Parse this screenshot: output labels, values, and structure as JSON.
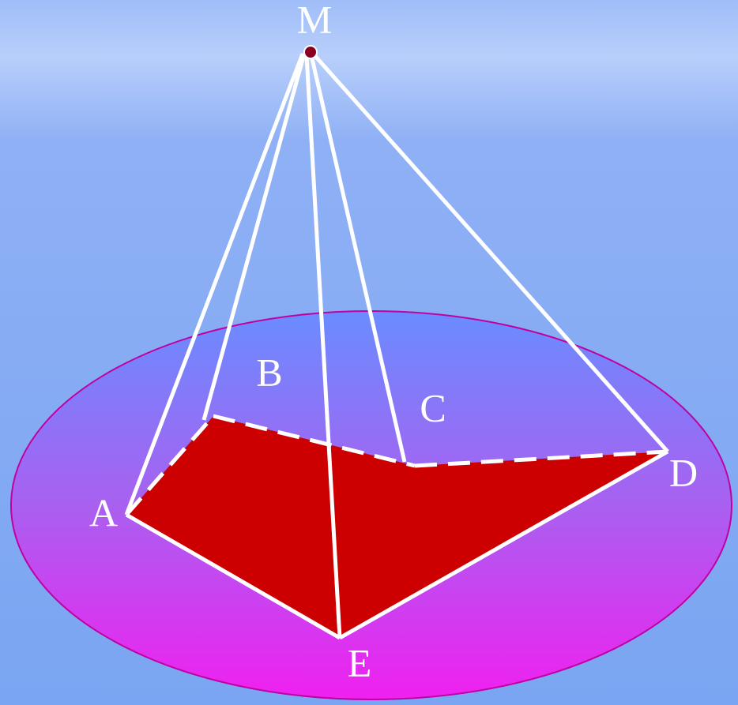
{
  "nodes": [
    {
      "label": "M"
    },
    {
      "label": "A"
    },
    {
      "label": "B"
    },
    {
      "label": "C"
    },
    {
      "label": "D"
    },
    {
      "label": "E"
    }
  ]
}
